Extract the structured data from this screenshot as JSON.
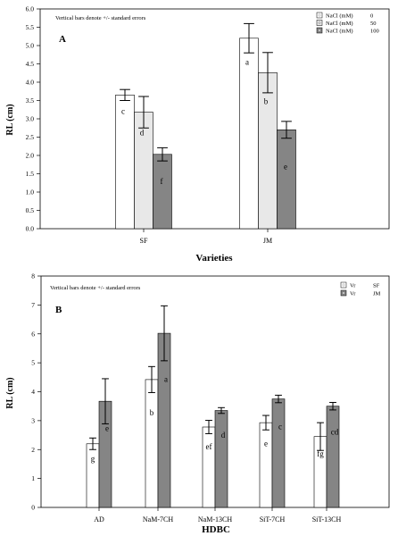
{
  "chart_data": [
    {
      "type": "bar",
      "panel_label": "A",
      "note": "Vertical bars denote +/- standard errors",
      "xlabel": "Varieties",
      "ylabel": "RL (cm)",
      "ylim": [
        0,
        6
      ],
      "yticks": [
        "0.0",
        "0.5",
        "1.0",
        "1.5",
        "2.0",
        "2.5",
        "3.0",
        "3.5",
        "4.0",
        "4.5",
        "5.0",
        "5.5",
        "6.0"
      ],
      "grid": false,
      "legend_position": "top-right",
      "categories": [
        "SF",
        "JM"
      ],
      "series": [
        {
          "name": "NaCl (mM)",
          "level": "0",
          "color": "#ffffff",
          "values": [
            3.65,
            5.2
          ],
          "errors": [
            0.15,
            0.4
          ],
          "letters": [
            "c",
            "a"
          ]
        },
        {
          "name": "NaCl (mM)",
          "level": "50",
          "color": "#e8e8e8",
          "values": [
            3.18,
            4.26
          ],
          "errors": [
            0.43,
            0.55
          ],
          "letters": [
            "d",
            "b"
          ]
        },
        {
          "name": "NaCl (mM)",
          "level": "100",
          "color": "#858585",
          "values": [
            2.03,
            2.7
          ],
          "errors": [
            0.18,
            0.23
          ],
          "letters": [
            "f",
            "e"
          ]
        }
      ]
    },
    {
      "type": "bar",
      "panel_label": "B",
      "note": "Vertical bars denote +/- standard errors",
      "xlabel": "HDBC",
      "ylabel": "RL (cm)",
      "ylim": [
        0,
        8
      ],
      "yticks": [
        "0",
        "1",
        "2",
        "3",
        "4",
        "5",
        "6",
        "7",
        "8"
      ],
      "grid": false,
      "legend_position": "top-right",
      "categories": [
        "AD",
        "NaM-7CH",
        "NaM-13CH",
        "SiT-7CH",
        "SiT-13CH"
      ],
      "series": [
        {
          "name": "Vr",
          "level": "SF",
          "color": "#ffffff",
          "values": [
            2.2,
            4.42,
            2.78,
            2.93,
            2.45
          ],
          "errors": [
            0.2,
            0.45,
            0.23,
            0.25,
            0.48
          ],
          "letters": [
            "g",
            "b",
            "ef",
            "e",
            "fg"
          ]
        },
        {
          "name": "Vr",
          "level": "JM",
          "color": "#858585",
          "values": [
            3.67,
            6.02,
            3.35,
            3.75,
            3.5
          ],
          "errors": [
            0.78,
            0.95,
            0.1,
            0.13,
            0.13
          ],
          "letters": [
            "e",
            "a",
            "d",
            "c",
            "cd"
          ]
        }
      ]
    }
  ]
}
